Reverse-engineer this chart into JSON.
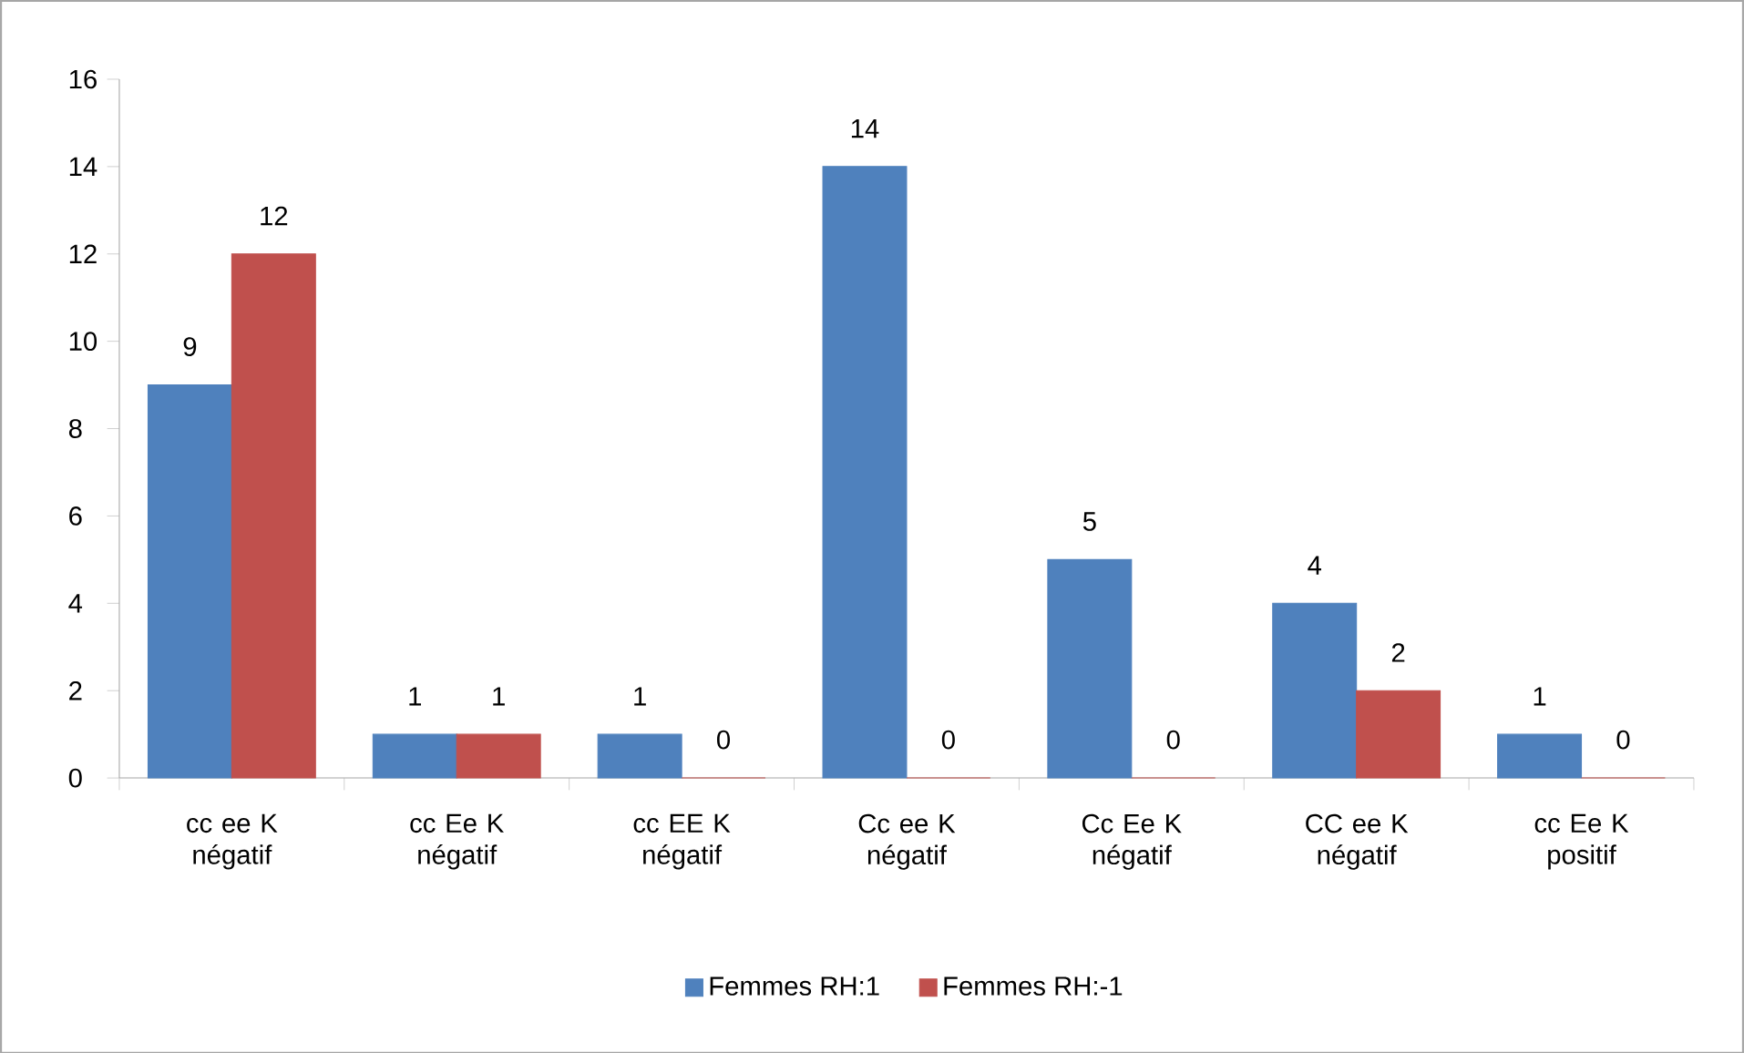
{
  "chart_data": {
    "type": "bar",
    "categories": [
      "cc  ee  K négatif",
      "cc  Ee  K négatif",
      "cc  EE  K négatif",
      "Cc  ee  K négatif",
      "Cc  Ee  K négatif",
      "CC  ee  K négatif",
      "cc  Ee  K positif"
    ],
    "series": [
      {
        "name": "Femmes RH:1",
        "color": "#4f81bd",
        "values": [
          9,
          1,
          1,
          14,
          5,
          4,
          1
        ]
      },
      {
        "name": "Femmes RH:-1",
        "color": "#c0504d",
        "values": [
          12,
          1,
          0,
          0,
          0,
          2,
          0
        ]
      }
    ],
    "ylim": [
      0,
      16
    ],
    "yticks": [
      0,
      2,
      4,
      6,
      8,
      10,
      12,
      14,
      16
    ],
    "grid": false,
    "legend": "bottom",
    "data_labels": true
  }
}
